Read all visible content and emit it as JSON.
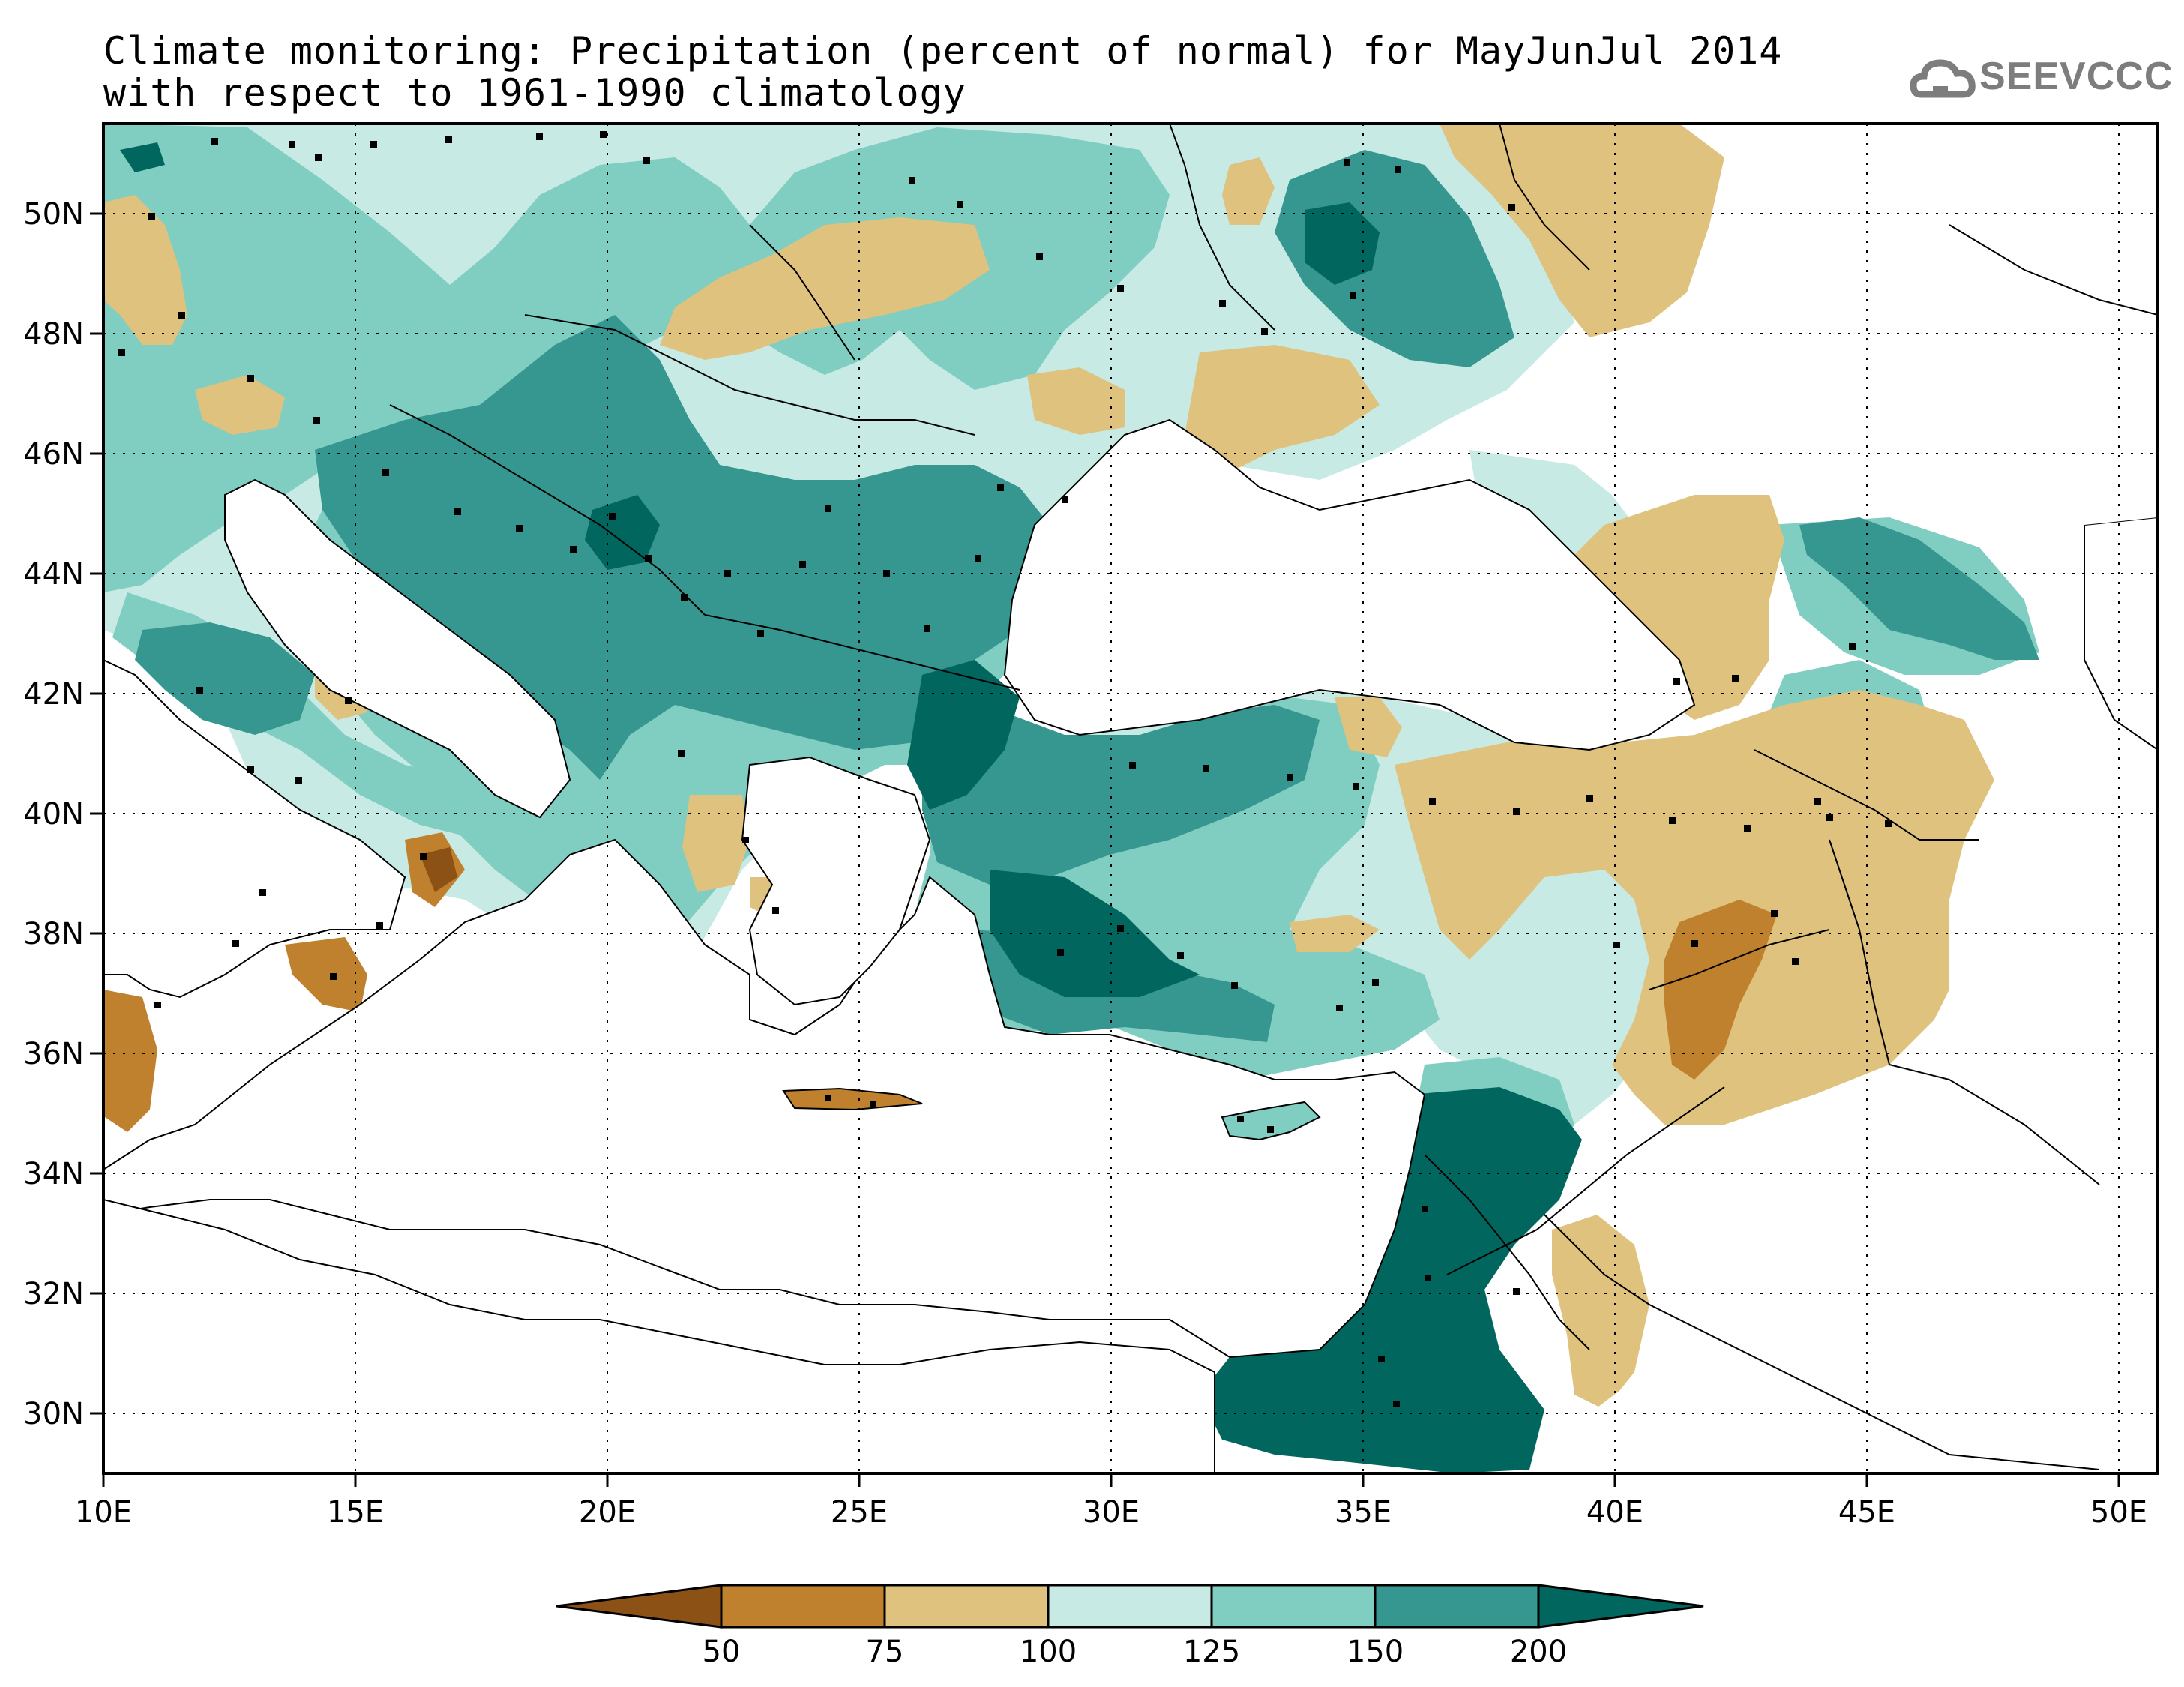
{
  "title": {
    "line1": "Climate monitoring: Precipitation (percent of normal) for MayJunJul 2014",
    "line2": "with respect to 1961-1990 climatology"
  },
  "logo": {
    "text": "SEEVCCC",
    "icon": "cloud-icon"
  },
  "map": {
    "lon_range": [
      10,
      51
    ],
    "lat_range": [
      29,
      51.5
    ],
    "lon_ticks": [
      "10E",
      "15E",
      "20E",
      "25E",
      "30E",
      "35E",
      "40E",
      "45E",
      "50E"
    ],
    "lat_ticks": [
      "30N",
      "32N",
      "34N",
      "36N",
      "38N",
      "40N",
      "42N",
      "44N",
      "46N",
      "48N",
      "50N"
    ],
    "grid": "dotted"
  },
  "legend": {
    "thresholds": [
      "50",
      "75",
      "100",
      "125",
      "150",
      "200"
    ],
    "colors": [
      "#8c5215",
      "#bf812d",
      "#dfc27d",
      "#c7eae5",
      "#80cdc1",
      "#35978f",
      "#01665e"
    ]
  }
}
